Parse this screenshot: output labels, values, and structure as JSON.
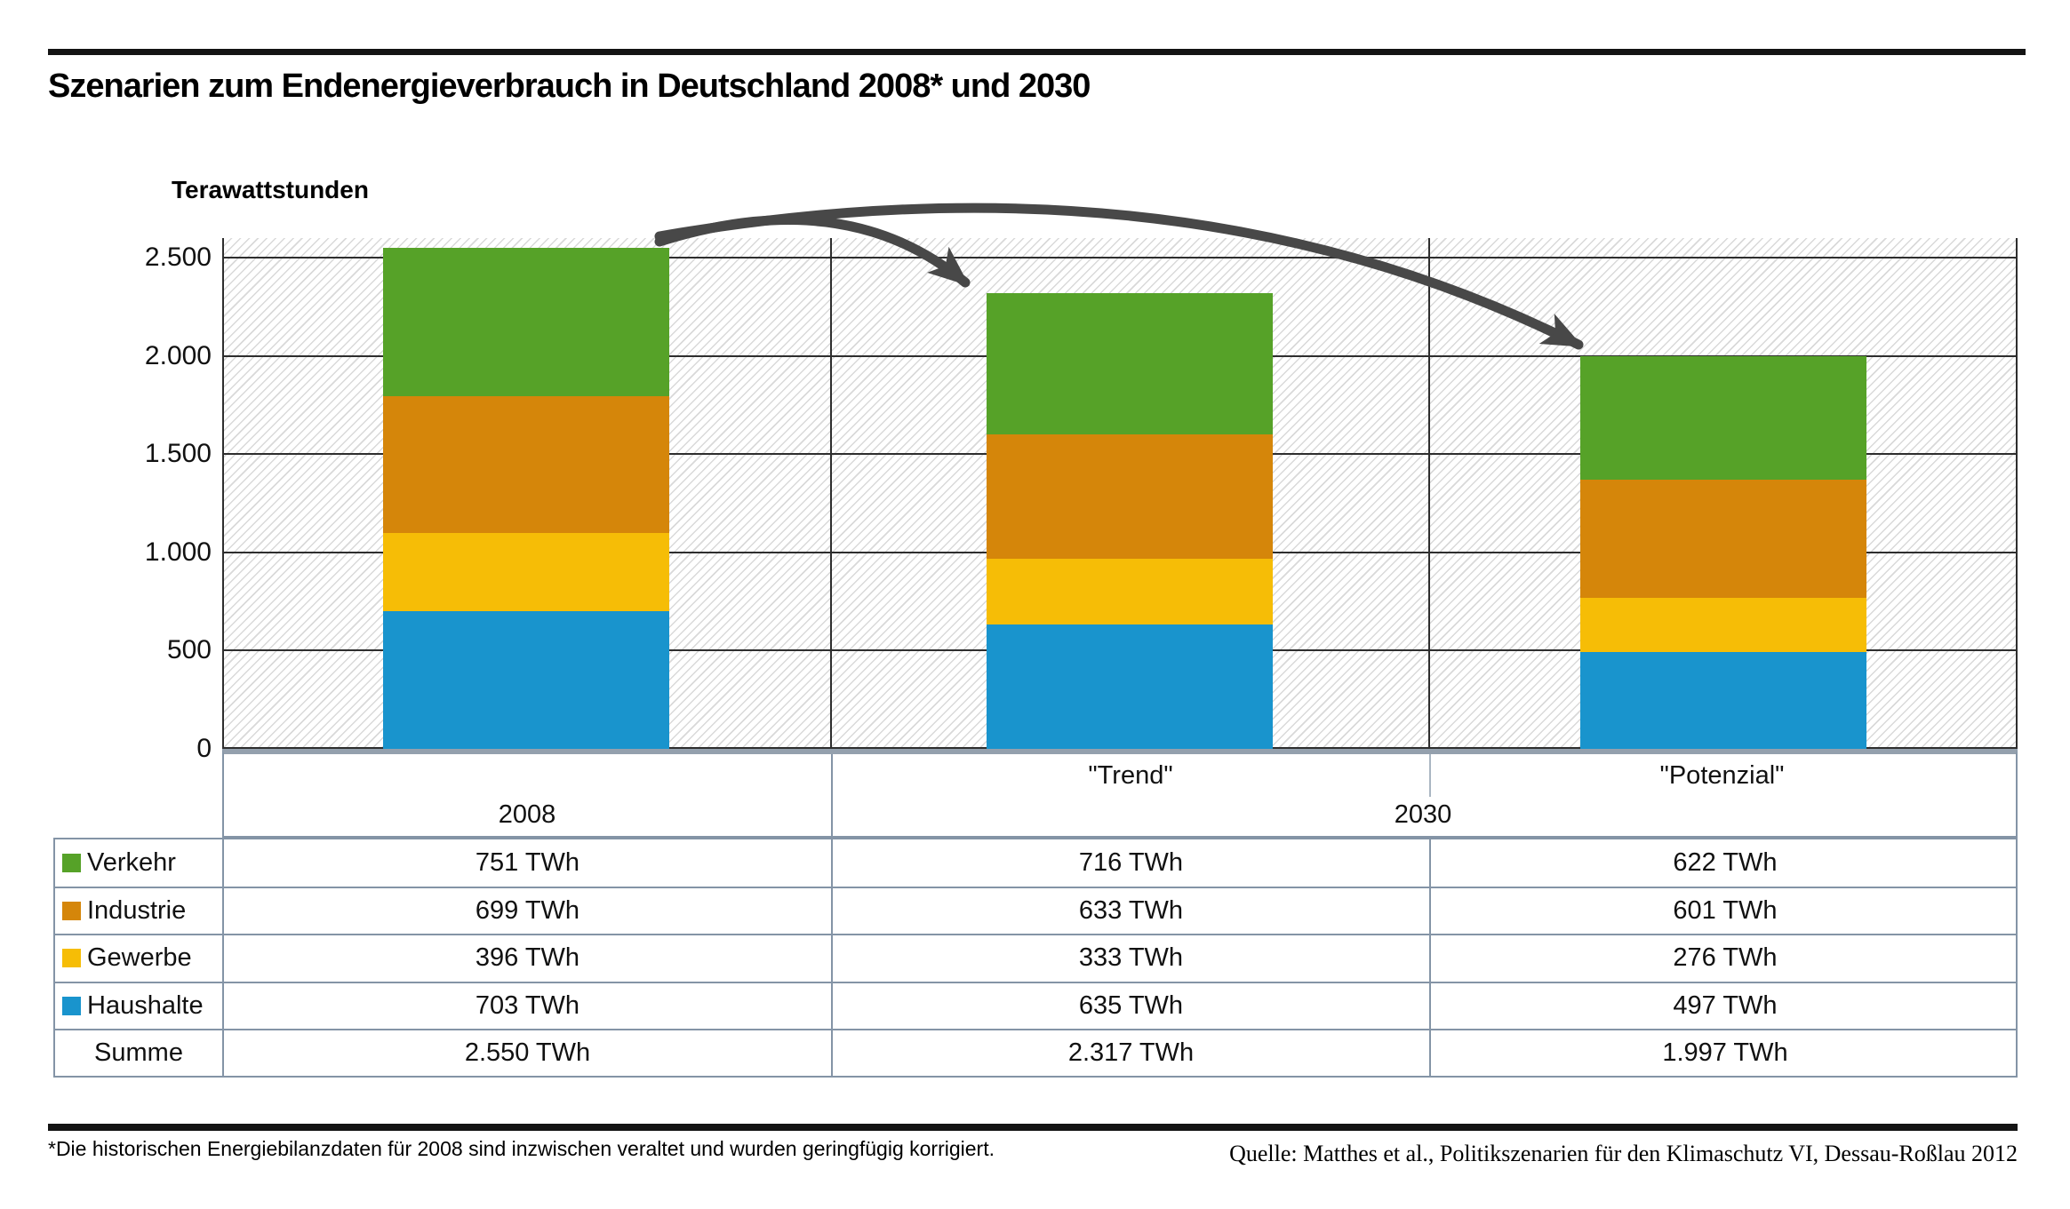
{
  "title": "Szenarien zum Endenergieverbrauch in Deutschland 2008* und 2030",
  "y_axis": {
    "label": "Terawattstunden",
    "ticks": [
      "2.500",
      "2.000",
      "1.500",
      "1.000",
      "500",
      "0"
    ]
  },
  "header": {
    "col_2008": "2008",
    "col_2030": "2030",
    "scenario_trend": "\"Trend\"",
    "scenario_potenzial": "\"Potenzial\""
  },
  "table": {
    "rows": [
      {
        "label": "Verkehr",
        "color": "#56a228",
        "values": [
          "751 TWh",
          "716 TWh",
          "622 TWh"
        ]
      },
      {
        "label": "Industrie",
        "color": "#d5860a",
        "values": [
          "699 TWh",
          "633 TWh",
          "601 TWh"
        ]
      },
      {
        "label": "Gewerbe",
        "color": "#f6bd06",
        "values": [
          "396 TWh",
          "333 TWh",
          "276 TWh"
        ]
      },
      {
        "label": "Haushalte",
        "color": "#1994cd",
        "values": [
          "703 TWh",
          "635 TWh",
          "497 TWh"
        ]
      },
      {
        "label": "Summe",
        "color": null,
        "values": [
          "2.550 TWh",
          "2.317 TWh",
          "1.997 TWh"
        ]
      }
    ]
  },
  "chart_data": {
    "type": "bar",
    "stacked": true,
    "title": "Szenarien zum Endenergieverbrauch in Deutschland 2008* und 2030",
    "ylabel": "Terawattstunden",
    "categories": [
      "2008",
      "2030 \"Trend\"",
      "2030 \"Potenzial\""
    ],
    "series_bottom_to_top": [
      {
        "name": "Haushalte",
        "color": "#1994cd",
        "values": [
          703,
          635,
          497
        ]
      },
      {
        "name": "Gewerbe",
        "color": "#f6bd06",
        "values": [
          396,
          333,
          276
        ]
      },
      {
        "name": "Industrie",
        "color": "#d5860a",
        "values": [
          699,
          633,
          601
        ]
      },
      {
        "name": "Verkehr",
        "color": "#56a228",
        "values": [
          751,
          716,
          622
        ]
      }
    ],
    "totals": [
      2550,
      2317,
      1997
    ],
    "ylim": [
      0,
      2600
    ],
    "ytick_values": [
      2500,
      2000,
      1500,
      1000,
      500,
      0
    ],
    "grid": "horizontal",
    "background_pattern": "diagonal-hatch",
    "annotations": "arrows from 2008 bar top to the tops of both 2030 scenario bars",
    "arrow_color": "#484848",
    "legend_position": "table-left"
  },
  "footnote": "*Die historischen Energiebilanzdaten für 2008 sind inzwischen veraltet und wurden geringfügig korrigiert.",
  "source": "Quelle: Matthes et al., Politikszenarien für den Klimaschutz VI, Dessau-Roßlau 2012"
}
